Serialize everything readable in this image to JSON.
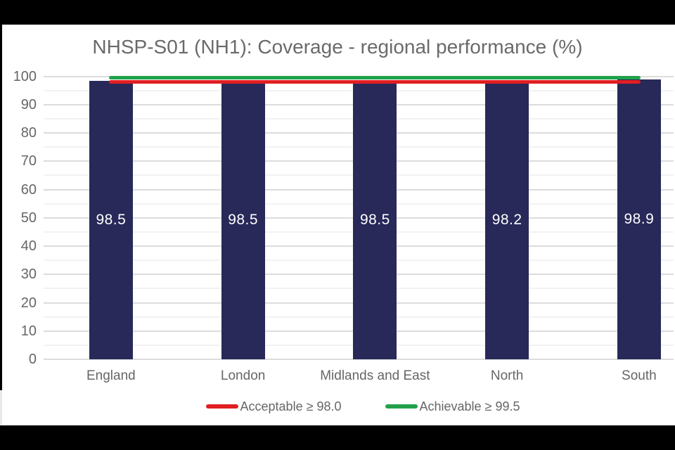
{
  "title": {
    "text": "NHSP-S01 (NH1): Coverage - regional performance (%)",
    "color": "#6a6a6a"
  },
  "chart_data": {
    "type": "bar",
    "title": "NHSP-S01 (NH1): Coverage - regional performance (%)",
    "categories": [
      "England",
      "London",
      "Midlands and East",
      "North",
      "South"
    ],
    "values": [
      98.5,
      98.5,
      98.5,
      98.2,
      98.9
    ],
    "value_labels": [
      "98.5",
      "98.5",
      "98.5",
      "98.2",
      "98.9"
    ],
    "xlabel": "",
    "ylabel": "",
    "ylim": [
      0,
      100
    ],
    "y_ticks": [
      0,
      10,
      20,
      30,
      40,
      50,
      60,
      70,
      80,
      90,
      100
    ],
    "y_minor_step": 5,
    "grid": true,
    "legend_position": "bottom",
    "reference_lines": [
      {
        "name": "Acceptable ≥ 98.0",
        "value": 98.0,
        "color": "#e01f22"
      },
      {
        "name": "Achievable ≥ 99.5",
        "value": 99.5,
        "color": "#22a14a"
      }
    ],
    "colors": {
      "bar": "#282959",
      "bar_value_text": "#ffffff",
      "axis_text": "#666666",
      "major_grid": "#dcdcdc",
      "minor_grid": "#f2f2f2",
      "frame": "#000000",
      "card_background": "#ffffff"
    }
  }
}
